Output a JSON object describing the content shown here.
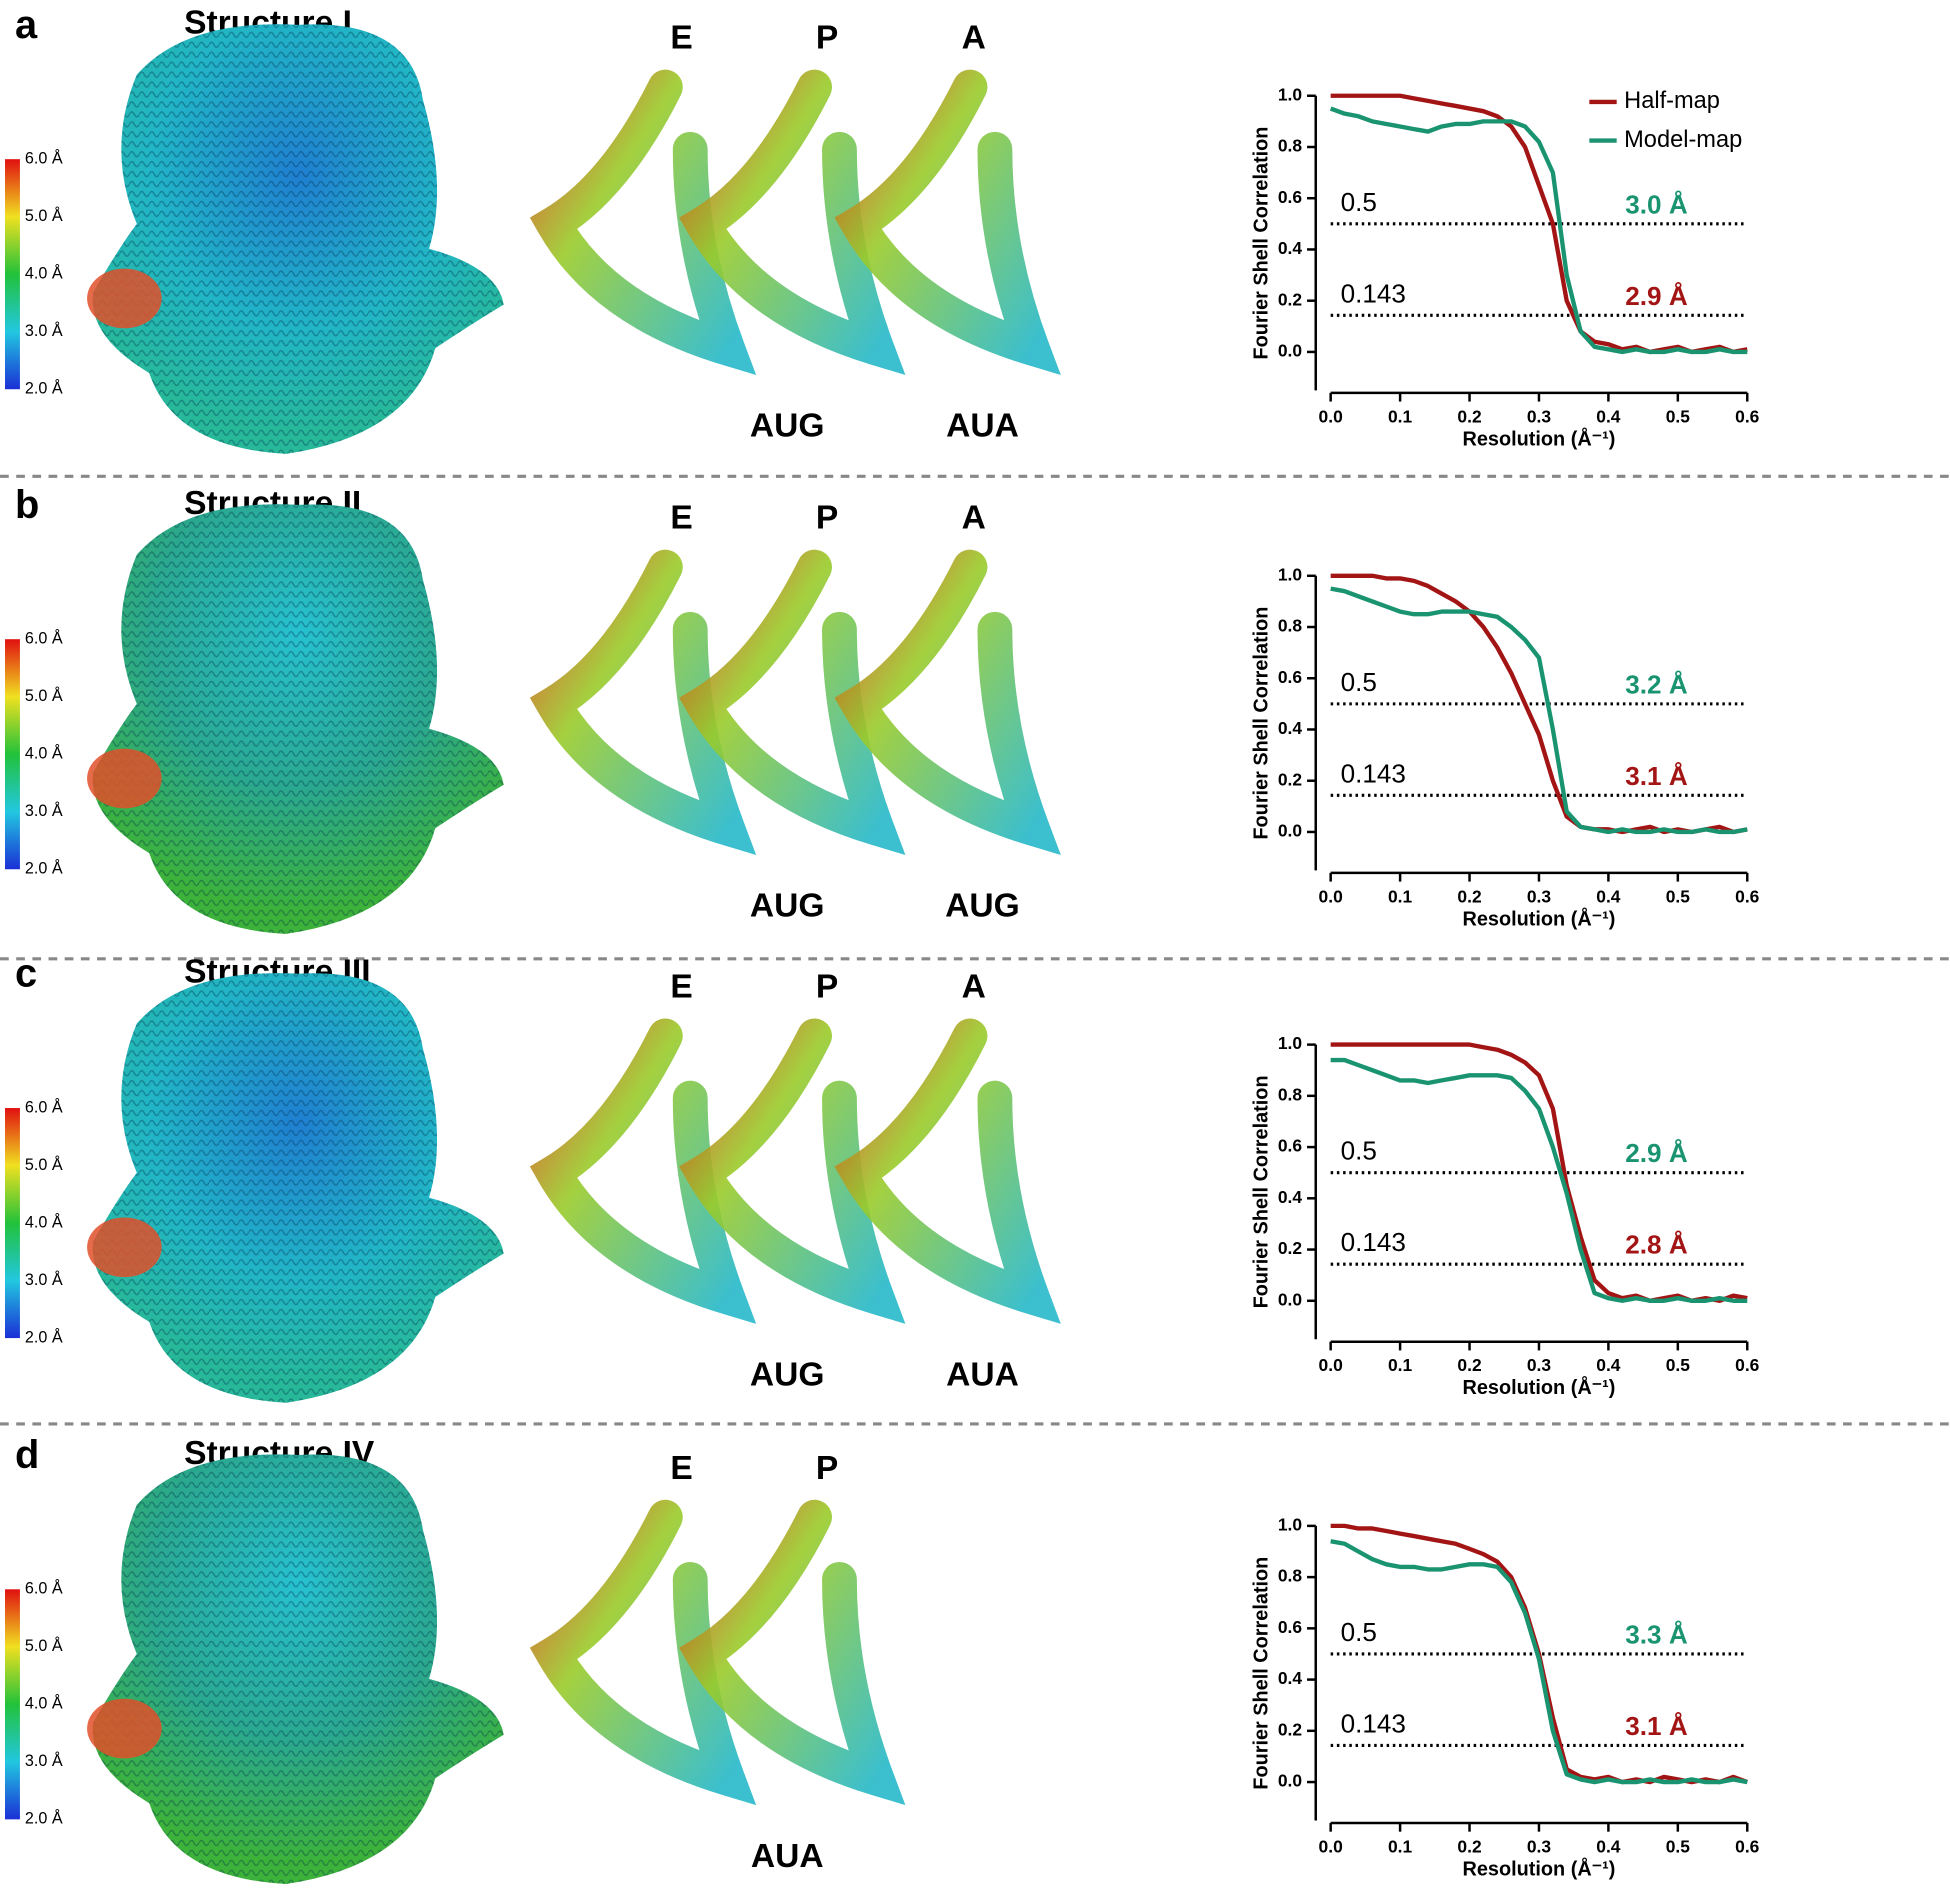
{
  "panels": [
    {
      "letter": "a",
      "title": "Structure I",
      "sites": [
        "E",
        "P",
        "A"
      ],
      "codons": [
        "AUG",
        "AUA"
      ],
      "colorbar": {
        "lim": [
          2,
          6
        ],
        "ticks": [
          {
            "value": 6,
            "label": "6.0 Å"
          },
          {
            "value": 5,
            "label": "5.0 Å"
          },
          {
            "value": 4,
            "label": "4.0 Å"
          },
          {
            "value": 3,
            "label": "3.0 Å"
          },
          {
            "value": 2,
            "label": "2.0 Å"
          }
        ]
      }
    },
    {
      "letter": "b",
      "title": "Structure II",
      "sites": [
        "E",
        "P",
        "A"
      ],
      "codons": [
        "AUG",
        "AUG"
      ],
      "colorbar": {
        "lim": [
          2,
          6
        ],
        "ticks": [
          {
            "value": 6,
            "label": "6.0 Å"
          },
          {
            "value": 5,
            "label": "5.0 Å"
          },
          {
            "value": 4,
            "label": "4.0 Å"
          },
          {
            "value": 3,
            "label": "3.0 Å"
          },
          {
            "value": 2,
            "label": "2.0 Å"
          }
        ]
      }
    },
    {
      "letter": "c",
      "title": "Structure III",
      "sites": [
        "E",
        "P",
        "A"
      ],
      "codons": [
        "AUG",
        "AUA"
      ],
      "colorbar": {
        "lim": [
          2,
          6
        ],
        "ticks": [
          {
            "value": 6,
            "label": "6.0 Å"
          },
          {
            "value": 5,
            "label": "5.0 Å"
          },
          {
            "value": 4,
            "label": "4.0 Å"
          },
          {
            "value": 3,
            "label": "3.0 Å"
          },
          {
            "value": 2,
            "label": "2.0 Å"
          }
        ]
      }
    },
    {
      "letter": "d",
      "title": "Structure IV",
      "sites": [
        "E",
        "P"
      ],
      "codons": [
        "AUA"
      ],
      "colorbar": {
        "lim": [
          2,
          6
        ],
        "ticks": [
          {
            "value": 6,
            "label": "6.0 Å"
          },
          {
            "value": 5,
            "label": "5.0 Å"
          },
          {
            "value": 4,
            "label": "4.0 Å"
          },
          {
            "value": 3,
            "label": "3.0 Å"
          },
          {
            "value": 2,
            "label": "2.0 Å"
          }
        ]
      }
    }
  ],
  "chart_data": [
    {
      "type": "line",
      "x_label": "Resolution (Å⁻¹)",
      "y_label": "Fourier Shell Correlation",
      "legend": "upper right",
      "x": [
        0,
        0.02,
        0.04,
        0.06,
        0.08,
        0.1,
        0.12,
        0.14,
        0.16,
        0.18,
        0.2,
        0.22,
        0.24,
        0.26,
        0.28,
        0.3,
        0.32,
        0.34,
        0.36,
        0.38,
        0.4,
        0.42,
        0.44,
        0.46,
        0.48,
        0.5,
        0.52,
        0.54,
        0.56,
        0.58,
        0.6
      ],
      "series": [
        {
          "name": "Half-map",
          "color": "#a31515",
          "values": [
            1,
            1,
            1,
            1,
            1,
            1,
            0.99,
            0.98,
            0.97,
            0.96,
            0.95,
            0.94,
            0.92,
            0.88,
            0.8,
            0.65,
            0.5,
            0.2,
            0.08,
            0.04,
            0.03,
            0.01,
            0.02,
            0,
            0.01,
            0.02,
            0,
            0.01,
            0.02,
            0,
            0.01
          ]
        },
        {
          "name": "Model-map",
          "color": "#1a9470",
          "values": [
            0.95,
            0.93,
            0.92,
            0.9,
            0.89,
            0.88,
            0.87,
            0.86,
            0.88,
            0.89,
            0.89,
            0.9,
            0.9,
            0.9,
            0.88,
            0.82,
            0.7,
            0.3,
            0.08,
            0.02,
            0.01,
            0,
            0.01,
            0,
            0,
            0.01,
            0,
            0,
            0.01,
            0,
            0
          ]
        }
      ],
      "xlim": [
        0,
        0.6
      ],
      "xticks": [
        {
          "value": 0,
          "label": "0.0"
        },
        0.1,
        0.2,
        0.3,
        0.4,
        0.5,
        0.6
      ],
      "ylim": [
        -0.15,
        1.0
      ],
      "yticks": [
        {
          "value": 0,
          "label": "0.0"
        },
        0.2,
        0.4,
        0.6,
        0.8,
        {
          "value": 1,
          "label": "1.0"
        }
      ],
      "hlines": [
        0.5,
        0.143
      ],
      "annotations": [
        {
          "text": "3.0 Å",
          "color": "#1a9470"
        },
        {
          "text": "2.9 Å",
          "color": "#a31515"
        }
      ]
    },
    {
      "type": "line",
      "x_label": "Resolution (Å⁻¹)",
      "y_label": "Fourier Shell Correlation",
      "x": [
        0,
        0.02,
        0.04,
        0.06,
        0.08,
        0.1,
        0.12,
        0.14,
        0.16,
        0.18,
        0.2,
        0.22,
        0.24,
        0.26,
        0.28,
        0.3,
        0.32,
        0.34,
        0.36,
        0.38,
        0.4,
        0.42,
        0.44,
        0.46,
        0.48,
        0.5,
        0.52,
        0.54,
        0.56,
        0.58,
        0.6
      ],
      "series": [
        {
          "color": "#a31515",
          "values": [
            1,
            1,
            1,
            1,
            0.99,
            0.99,
            0.98,
            0.96,
            0.93,
            0.9,
            0.86,
            0.8,
            0.72,
            0.62,
            0.5,
            0.38,
            0.2,
            0.06,
            0.02,
            0.01,
            0.01,
            0,
            0.01,
            0.02,
            0,
            0.01,
            0,
            0.01,
            0.02,
            0,
            0.01
          ]
        },
        {
          "color": "#1a9470",
          "values": [
            0.95,
            0.94,
            0.92,
            0.9,
            0.88,
            0.86,
            0.85,
            0.85,
            0.86,
            0.86,
            0.86,
            0.85,
            0.84,
            0.8,
            0.75,
            0.68,
            0.4,
            0.08,
            0.02,
            0.01,
            0,
            0.01,
            0,
            0,
            0.01,
            0,
            0,
            0.01,
            0,
            0,
            0.01
          ]
        }
      ],
      "xlim": [
        0,
        0.6
      ],
      "xticks": [
        {
          "value": 0,
          "label": "0.0"
        },
        0.1,
        0.2,
        0.3,
        0.4,
        0.5,
        0.6
      ],
      "ylim": [
        -0.15,
        1.0
      ],
      "yticks": [
        {
          "value": 0,
          "label": "0.0"
        },
        0.2,
        0.4,
        0.6,
        0.8,
        {
          "value": 1,
          "label": "1.0"
        }
      ],
      "hlines": [
        0.5,
        0.143
      ],
      "annotations": [
        {
          "text": "3.2 Å",
          "color": "#1a9470"
        },
        {
          "text": "3.1 Å",
          "color": "#a31515"
        }
      ]
    },
    {
      "type": "line",
      "x_label": "Resolution (Å⁻¹)",
      "y_label": "Fourier Shell Correlation",
      "x": [
        0,
        0.02,
        0.04,
        0.06,
        0.08,
        0.1,
        0.12,
        0.14,
        0.16,
        0.18,
        0.2,
        0.22,
        0.24,
        0.26,
        0.28,
        0.3,
        0.32,
        0.34,
        0.36,
        0.38,
        0.4,
        0.42,
        0.44,
        0.46,
        0.48,
        0.5,
        0.52,
        0.54,
        0.56,
        0.58,
        0.6
      ],
      "series": [
        {
          "color": "#a31515",
          "values": [
            1,
            1,
            1,
            1,
            1,
            1,
            1,
            1,
            1,
            1,
            1,
            0.99,
            0.98,
            0.96,
            0.93,
            0.88,
            0.75,
            0.45,
            0.25,
            0.08,
            0.03,
            0.01,
            0.02,
            0,
            0.01,
            0.02,
            0,
            0.01,
            0,
            0.02,
            0.01
          ]
        },
        {
          "color": "#1a9470",
          "values": [
            0.94,
            0.94,
            0.92,
            0.9,
            0.88,
            0.86,
            0.86,
            0.85,
            0.86,
            0.87,
            0.88,
            0.88,
            0.88,
            0.87,
            0.82,
            0.75,
            0.6,
            0.42,
            0.2,
            0.03,
            0.01,
            0,
            0.01,
            0,
            0,
            0.01,
            0,
            0,
            0.01,
            0,
            0
          ]
        }
      ],
      "xlim": [
        0,
        0.6
      ],
      "xticks": [
        {
          "value": 0,
          "label": "0.0"
        },
        0.1,
        0.2,
        0.3,
        0.4,
        0.5,
        0.6
      ],
      "ylim": [
        -0.15,
        1.0
      ],
      "yticks": [
        {
          "value": 0,
          "label": "0.0"
        },
        0.2,
        0.4,
        0.6,
        0.8,
        {
          "value": 1,
          "label": "1.0"
        }
      ],
      "hlines": [
        0.5,
        0.143
      ],
      "annotations": [
        {
          "text": "2.9 Å",
          "color": "#1a9470"
        },
        {
          "text": "2.8 Å",
          "color": "#a31515"
        }
      ]
    },
    {
      "type": "line",
      "x_label": "Resolution (Å⁻¹)",
      "y_label": "Fourier Shell Correlation",
      "x": [
        0,
        0.02,
        0.04,
        0.06,
        0.08,
        0.1,
        0.12,
        0.14,
        0.16,
        0.18,
        0.2,
        0.22,
        0.24,
        0.26,
        0.28,
        0.3,
        0.32,
        0.34,
        0.36,
        0.38,
        0.4,
        0.42,
        0.44,
        0.46,
        0.48,
        0.5,
        0.52,
        0.54,
        0.56,
        0.58,
        0.6
      ],
      "series": [
        {
          "color": "#a31515",
          "values": [
            1,
            1,
            0.99,
            0.99,
            0.98,
            0.97,
            0.96,
            0.95,
            0.94,
            0.93,
            0.91,
            0.89,
            0.86,
            0.8,
            0.68,
            0.5,
            0.25,
            0.05,
            0.02,
            0.01,
            0.02,
            0,
            0.01,
            0,
            0.02,
            0.01,
            0,
            0.01,
            0,
            0.02,
            0
          ]
        },
        {
          "color": "#1a9470",
          "values": [
            0.94,
            0.93,
            0.9,
            0.87,
            0.85,
            0.84,
            0.84,
            0.83,
            0.83,
            0.84,
            0.85,
            0.85,
            0.84,
            0.78,
            0.66,
            0.48,
            0.2,
            0.03,
            0.01,
            0,
            0.01,
            0,
            0,
            0.01,
            0,
            0,
            0.01,
            0,
            0,
            0.01,
            0
          ]
        }
      ],
      "xlim": [
        0,
        0.6
      ],
      "xticks": [
        {
          "value": 0,
          "label": "0.0"
        },
        0.1,
        0.2,
        0.3,
        0.4,
        0.5,
        0.6
      ],
      "ylim": [
        -0.15,
        1.0
      ],
      "yticks": [
        {
          "value": 0,
          "label": "0.0"
        },
        0.2,
        0.4,
        0.6,
        0.8,
        {
          "value": 1,
          "label": "1.0"
        }
      ],
      "hlines": [
        0.5,
        0.143
      ],
      "annotations": [
        {
          "text": "3.3 Å",
          "color": "#1a9470"
        },
        {
          "text": "3.1 Å",
          "color": "#a31515"
        }
      ]
    }
  ]
}
